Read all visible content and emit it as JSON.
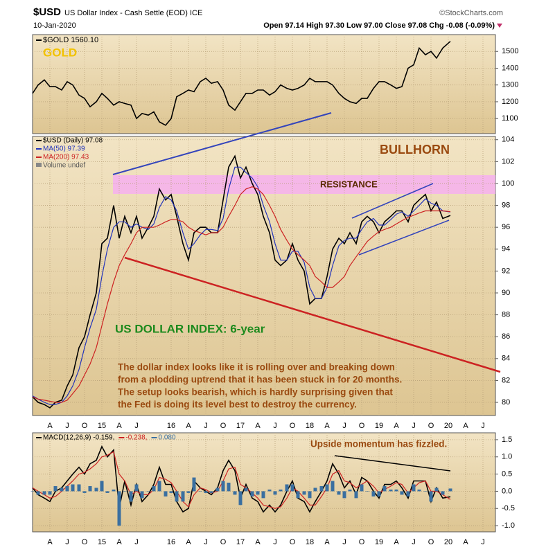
{
  "header": {
    "symbol": "$USD",
    "name": "US Dollar Index - Cash Settle (EOD) ICE",
    "source": "©StockCharts.com",
    "date": "10-Jan-2020",
    "quote": "Open 97.14 High 97.30 Low 97.00 Close 97.08 Chg -0.08 (-0.09%)"
  },
  "chart_data": [
    {
      "type": "line",
      "annotations": [
        "GOLD"
      ],
      "x": [
        2014.0,
        2014.08,
        2014.17,
        2014.25,
        2014.33,
        2014.42,
        2014.5,
        2014.58,
        2014.67,
        2014.75,
        2014.83,
        2014.92,
        2015.0,
        2015.08,
        2015.17,
        2015.25,
        2015.33,
        2015.42,
        2015.5,
        2015.58,
        2015.67,
        2015.75,
        2015.83,
        2015.92,
        2016.0,
        2016.08,
        2016.17,
        2016.25,
        2016.33,
        2016.42,
        2016.5,
        2016.58,
        2016.67,
        2016.75,
        2016.83,
        2016.92,
        2017.0,
        2017.08,
        2017.17,
        2017.25,
        2017.33,
        2017.42,
        2017.5,
        2017.58,
        2017.67,
        2017.75,
        2017.83,
        2017.92,
        2018.0,
        2018.08,
        2018.17,
        2018.25,
        2018.33,
        2018.42,
        2018.5,
        2018.58,
        2018.67,
        2018.75,
        2018.83,
        2018.92,
        2019.0,
        2019.08,
        2019.17,
        2019.25,
        2019.33,
        2019.42,
        2019.5,
        2019.58,
        2019.67,
        2019.75,
        2019.83,
        2019.92,
        2020.03
      ],
      "series": [
        {
          "name": "$GOLD 1560.10",
          "color": "#000000",
          "values": [
            1250,
            1300,
            1330,
            1290,
            1290,
            1270,
            1320,
            1300,
            1240,
            1220,
            1170,
            1200,
            1250,
            1220,
            1180,
            1200,
            1190,
            1180,
            1100,
            1130,
            1120,
            1140,
            1080,
            1060,
            1100,
            1230,
            1250,
            1270,
            1260,
            1320,
            1340,
            1310,
            1320,
            1270,
            1180,
            1150,
            1200,
            1250,
            1250,
            1270,
            1270,
            1240,
            1260,
            1300,
            1280,
            1270,
            1280,
            1300,
            1340,
            1320,
            1320,
            1320,
            1300,
            1250,
            1220,
            1200,
            1190,
            1220,
            1220,
            1280,
            1320,
            1320,
            1300,
            1280,
            1290,
            1400,
            1420,
            1520,
            1480,
            1500,
            1460,
            1520,
            1560
          ]
        }
      ],
      "ylim": [
        1010,
        1600
      ],
      "yticks": [
        1100,
        1200,
        1300,
        1400,
        1500
      ]
    },
    {
      "type": "line",
      "annotations": [
        "BULLHORN",
        "RESISTANCE",
        "US DOLLAR INDEX: 6-year",
        "The dollar index looks like it is rolling over and breaking down",
        "from a plodding uptrend that it has been stuck in for 20 months.",
        "The setup looks bearish, which is hardly surprising given that",
        "the Fed is doing its level best to destroy the currency."
      ],
      "volume_label": "Volume undef",
      "x": [
        2014.0,
        2014.08,
        2014.17,
        2014.25,
        2014.33,
        2014.42,
        2014.5,
        2014.58,
        2014.67,
        2014.75,
        2014.83,
        2014.92,
        2015.0,
        2015.08,
        2015.17,
        2015.25,
        2015.33,
        2015.42,
        2015.5,
        2015.58,
        2015.67,
        2015.75,
        2015.83,
        2015.92,
        2016.0,
        2016.08,
        2016.17,
        2016.25,
        2016.33,
        2016.42,
        2016.5,
        2016.58,
        2016.67,
        2016.75,
        2016.83,
        2016.92,
        2017.0,
        2017.08,
        2017.17,
        2017.25,
        2017.33,
        2017.42,
        2017.5,
        2017.58,
        2017.67,
        2017.75,
        2017.83,
        2017.92,
        2018.0,
        2018.08,
        2018.17,
        2018.25,
        2018.33,
        2018.42,
        2018.5,
        2018.58,
        2018.67,
        2018.75,
        2018.83,
        2018.92,
        2019.0,
        2019.08,
        2019.17,
        2019.25,
        2019.33,
        2019.42,
        2019.5,
        2019.58,
        2019.67,
        2019.75,
        2019.83,
        2019.92,
        2020.03
      ],
      "series": [
        {
          "name": "$USD (Daily) 97.08",
          "color": "#000000",
          "values": [
            80.5,
            80,
            79.8,
            79.5,
            80,
            80.2,
            81.5,
            82.5,
            85,
            86,
            88,
            90,
            94.5,
            95,
            98,
            95,
            97,
            95.5,
            97,
            95,
            96,
            97,
            99.5,
            98.5,
            99,
            97,
            94.5,
            93,
            95.5,
            96,
            96,
            95.5,
            95.5,
            98.5,
            101.5,
            102.5,
            100.5,
            101.5,
            100,
            99,
            97,
            95.5,
            93,
            92.5,
            93,
            94.5,
            93,
            92,
            89,
            89.5,
            89.5,
            91.5,
            94,
            95,
            94.5,
            95.5,
            94.5,
            96.5,
            97,
            96.5,
            95.5,
            96.5,
            97,
            97.5,
            97.5,
            96.5,
            98,
            98.5,
            99,
            97.5,
            98.3,
            96.8,
            97.08
          ]
        },
        {
          "name": "MA(50) 97.39",
          "color": "#2233bb",
          "values": [
            80.6,
            80.3,
            80,
            79.8,
            79.8,
            80,
            80.6,
            81.5,
            83,
            85,
            86.8,
            88.5,
            91.5,
            94,
            96,
            96.5,
            96.5,
            96,
            96.3,
            96,
            95.8,
            96.3,
            97.8,
            98.8,
            98.5,
            97.5,
            95.5,
            94,
            94.5,
            95.3,
            95.8,
            95.8,
            95.7,
            96.8,
            99.5,
            101.5,
            101.5,
            101,
            100.5,
            99.7,
            98,
            96.5,
            94.5,
            93,
            93,
            93.8,
            93.8,
            92.8,
            90.5,
            89.5,
            89.5,
            90.5,
            92.5,
            94.3,
            94.8,
            95,
            95,
            95.8,
            96.5,
            96.8,
            96.2,
            96.2,
            96.7,
            97.2,
            97.4,
            97,
            97.5,
            98,
            98.6,
            98.2,
            98,
            97.5,
            97.39
          ]
        },
        {
          "name": "MA(200) 97.43",
          "color": "#cc2222",
          "values": [
            80.5,
            80.3,
            80.2,
            80.1,
            80,
            80,
            80.2,
            80.8,
            81.5,
            82.5,
            83.5,
            85,
            87,
            89,
            91,
            92.5,
            93.5,
            94.5,
            95.5,
            96,
            96,
            96,
            96.2,
            96.5,
            96.7,
            96.7,
            96.5,
            96,
            95.7,
            95.5,
            95.3,
            95.5,
            95.5,
            96,
            97,
            98,
            99,
            99.5,
            99.7,
            99.5,
            99,
            98,
            97,
            95.8,
            94.8,
            94,
            93.5,
            93,
            92.5,
            91.5,
            91,
            90.5,
            90.5,
            91,
            91.5,
            92.5,
            93.3,
            94,
            94.7,
            95.2,
            95.6,
            95.8,
            96,
            96.3,
            96.6,
            96.9,
            97.1,
            97.3,
            97.5,
            97.5,
            97.5,
            97.5,
            97.43
          ]
        }
      ],
      "ylim": [
        78.8,
        104.3
      ],
      "yticks": [
        80,
        82,
        84,
        86,
        88,
        90,
        92,
        94,
        96,
        98,
        100,
        102,
        104
      ],
      "xlim": [
        2014,
        2020.68
      ],
      "xticks": [
        {
          "value": 2014.25,
          "label": "A"
        },
        {
          "value": 2014.5,
          "label": "J"
        },
        {
          "value": 2014.75,
          "label": "O"
        },
        {
          "value": 2015,
          "label": "15"
        },
        {
          "value": 2015.25,
          "label": "A"
        },
        {
          "value": 2015.5,
          "label": "J"
        },
        {
          "value": 2016,
          "label": "16"
        },
        {
          "value": 2016.25,
          "label": "A"
        },
        {
          "value": 2016.5,
          "label": "J"
        },
        {
          "value": 2016.75,
          "label": "O"
        },
        {
          "value": 2017,
          "label": "17"
        },
        {
          "value": 2017.25,
          "label": "A"
        },
        {
          "value": 2017.5,
          "label": "J"
        },
        {
          "value": 2017.75,
          "label": "O"
        },
        {
          "value": 2018,
          "label": "18"
        },
        {
          "value": 2018.25,
          "label": "A"
        },
        {
          "value": 2018.5,
          "label": "J"
        },
        {
          "value": 2018.75,
          "label": "O"
        },
        {
          "value": 2019,
          "label": "19"
        },
        {
          "value": 2019.25,
          "label": "A"
        },
        {
          "value": 2019.5,
          "label": "J"
        },
        {
          "value": 2019.75,
          "label": "O"
        },
        {
          "value": 2020,
          "label": "20"
        },
        {
          "value": 2020.25,
          "label": "A"
        },
        {
          "value": 2020.5,
          "label": "J"
        }
      ]
    },
    {
      "type": "line",
      "annotations": [
        "Upside momentum has fizzled."
      ],
      "x": [
        2014.0,
        2014.08,
        2014.17,
        2014.25,
        2014.33,
        2014.42,
        2014.5,
        2014.58,
        2014.67,
        2014.75,
        2014.83,
        2014.92,
        2015.0,
        2015.08,
        2015.17,
        2015.25,
        2015.33,
        2015.42,
        2015.5,
        2015.58,
        2015.67,
        2015.75,
        2015.83,
        2015.92,
        2016.0,
        2016.08,
        2016.17,
        2016.25,
        2016.33,
        2016.42,
        2016.5,
        2016.58,
        2016.67,
        2016.75,
        2016.83,
        2016.92,
        2017.0,
        2017.08,
        2017.17,
        2017.25,
        2017.33,
        2017.42,
        2017.5,
        2017.58,
        2017.67,
        2017.75,
        2017.83,
        2017.92,
        2018.0,
        2018.08,
        2018.17,
        2018.25,
        2018.33,
        2018.42,
        2018.5,
        2018.58,
        2018.67,
        2018.75,
        2018.83,
        2018.92,
        2019.0,
        2019.08,
        2019.17,
        2019.25,
        2019.33,
        2019.42,
        2019.5,
        2019.58,
        2019.67,
        2019.75,
        2019.83,
        2019.92,
        2020.03
      ],
      "series": [
        {
          "name": "MACD(12,26,9) -0.159,",
          "color": "#000000",
          "values": [
            0.1,
            -0.1,
            -0.2,
            -0.3,
            0,
            0.1,
            0.3,
            0.5,
            0.7,
            0.5,
            0.8,
            0.9,
            1.3,
            1.0,
            1.2,
            -0.5,
            0.3,
            -0.4,
            0.2,
            -0.3,
            -0.1,
            0.2,
            0.7,
            0.2,
            0.2,
            -0.3,
            -0.6,
            -0.5,
            0.3,
            0.1,
            0,
            -0.1,
            0.1,
            0.6,
            0.9,
            0.6,
            -0.2,
            0.2,
            -0.2,
            -0.3,
            -0.6,
            -0.4,
            -0.6,
            -0.4,
            0,
            0.3,
            -0.2,
            -0.3,
            -0.6,
            -0.3,
            0,
            0.3,
            0.8,
            0.5,
            0.1,
            0.3,
            -0.1,
            0.4,
            0.3,
            0,
            -0.2,
            0.2,
            0.2,
            0.3,
            0.1,
            -0.2,
            0.3,
            0.3,
            0.3,
            -0.3,
            0.1,
            -0.2,
            -0.159
          ]
        },
        {
          "name": "-0.238,",
          "color": "#cc2222",
          "values": [
            0.1,
            0,
            -0.1,
            -0.2,
            -0.15,
            0,
            0.15,
            0.3,
            0.5,
            0.55,
            0.65,
            0.8,
            1.0,
            1.05,
            1.15,
            0.5,
            0.3,
            -0.1,
            0,
            -0.1,
            -0.1,
            0.05,
            0.4,
            0.35,
            0.25,
            0,
            -0.3,
            -0.45,
            -0.1,
            0.1,
            0.05,
            -0.05,
            0,
            0.3,
            0.65,
            0.7,
            0.2,
            0.1,
            -0.05,
            -0.2,
            -0.4,
            -0.45,
            -0.5,
            -0.45,
            -0.2,
            0.1,
            0,
            -0.2,
            -0.4,
            -0.4,
            -0.15,
            0.1,
            0.5,
            0.6,
            0.3,
            0.25,
            0.1,
            0.2,
            0.3,
            0.15,
            -0.05,
            0.05,
            0.15,
            0.25,
            0.2,
            -0.05,
            0.1,
            0.25,
            0.3,
            0,
            0,
            -0.1,
            -0.238
          ]
        },
        {
          "name": "0.080",
          "color": "#3a6fa0",
          "kind": "histogram",
          "values": [
            0,
            -0.1,
            -0.1,
            -0.1,
            0.15,
            0.1,
            0.15,
            0.2,
            0.2,
            -0.05,
            0.15,
            0.1,
            0.3,
            -0.05,
            0.05,
            -1.0,
            0,
            -0.3,
            0.2,
            -0.2,
            0,
            0.15,
            0.3,
            -0.15,
            -0.05,
            -0.3,
            -0.3,
            -0.05,
            0.4,
            0,
            -0.05,
            -0.05,
            0.1,
            0.3,
            0.25,
            -0.1,
            -0.4,
            0.1,
            -0.15,
            -0.1,
            -0.2,
            0.05,
            -0.1,
            0.05,
            0.2,
            0.2,
            -0.2,
            -0.1,
            -0.2,
            0.1,
            0.15,
            0.2,
            0.3,
            -0.1,
            -0.2,
            0.05,
            -0.2,
            0.2,
            0,
            -0.15,
            -0.15,
            0.15,
            0.05,
            0.05,
            -0.1,
            -0.15,
            0.2,
            0.05,
            0,
            -0.3,
            0.1,
            -0.1,
            0.08
          ]
        }
      ],
      "ylim": [
        -1.18,
        1.7
      ],
      "yticks": [
        {
          "value": -1,
          "label": "-1.0"
        },
        -0.5,
        {
          "value": 0,
          "label": "0.0"
        },
        0.5,
        {
          "value": 1,
          "label": "1.0"
        },
        1.5
      ],
      "xlim": [
        2014,
        2020.68
      ],
      "xticks": [
        {
          "value": 2014.25,
          "label": "A"
        },
        {
          "value": 2014.5,
          "label": "J"
        },
        {
          "value": 2014.75,
          "label": "O"
        },
        {
          "value": 2015,
          "label": "15"
        },
        {
          "value": 2015.25,
          "label": "A"
        },
        {
          "value": 2015.5,
          "label": "J"
        },
        {
          "value": 2016,
          "label": "16"
        },
        {
          "value": 2016.25,
          "label": "A"
        },
        {
          "value": 2016.5,
          "label": "J"
        },
        {
          "value": 2016.75,
          "label": "O"
        },
        {
          "value": 2017,
          "label": "17"
        },
        {
          "value": 2017.25,
          "label": "A"
        },
        {
          "value": 2017.5,
          "label": "J"
        },
        {
          "value": 2017.75,
          "label": "O"
        },
        {
          "value": 2018,
          "label": "18"
        },
        {
          "value": 2018.25,
          "label": "A"
        },
        {
          "value": 2018.5,
          "label": "J"
        },
        {
          "value": 2018.75,
          "label": "O"
        },
        {
          "value": 2019,
          "label": "19"
        },
        {
          "value": 2019.25,
          "label": "A"
        },
        {
          "value": 2019.5,
          "label": "J"
        },
        {
          "value": 2019.75,
          "label": "O"
        },
        {
          "value": 2020,
          "label": "20"
        },
        {
          "value": 2020.25,
          "label": "A"
        },
        {
          "value": 2020.5,
          "label": "J"
        }
      ]
    }
  ]
}
